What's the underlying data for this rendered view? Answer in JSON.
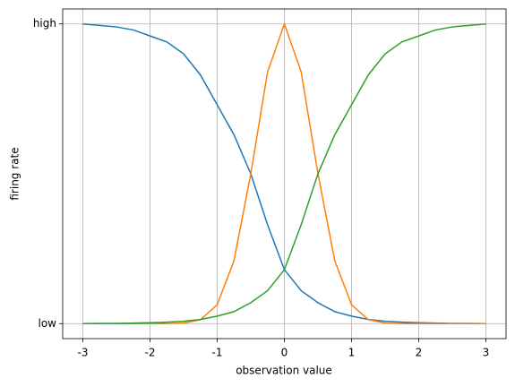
{
  "chart_data": {
    "type": "line",
    "xlabel": "observation value",
    "ylabel": "firing rate",
    "x": [
      -3,
      -2.75,
      -2.5,
      -2.25,
      -2,
      -1.75,
      -1.5,
      -1.25,
      -1,
      -0.75,
      -0.5,
      -0.25,
      0,
      0.25,
      0.5,
      0.75,
      1,
      1.25,
      1.5,
      1.75,
      2,
      2.25,
      2.5,
      2.75,
      3
    ],
    "series": [
      {
        "color": "#1f77b4",
        "values": [
          1.0,
          0.995,
          0.99,
          0.98,
          0.96,
          0.94,
          0.9,
          0.83,
          0.73,
          0.63,
          0.5,
          0.33,
          0.18,
          0.11,
          0.07,
          0.04,
          0.025,
          0.014,
          0.008,
          0.005,
          0.003,
          0.002,
          0.001,
          0.001,
          0.0
        ]
      },
      {
        "color": "#ff7f0e",
        "values": [
          0,
          0,
          0,
          0,
          0,
          0,
          0.002,
          0.013,
          0.063,
          0.21,
          0.5,
          0.84,
          1.0,
          0.84,
          0.5,
          0.21,
          0.063,
          0.013,
          0.002,
          0,
          0,
          0,
          0,
          0,
          0
        ]
      },
      {
        "color": "#2ca02c",
        "values": [
          0.0,
          0.001,
          0.001,
          0.002,
          0.003,
          0.005,
          0.008,
          0.014,
          0.025,
          0.04,
          0.07,
          0.11,
          0.18,
          0.33,
          0.5,
          0.63,
          0.73,
          0.83,
          0.9,
          0.94,
          0.96,
          0.98,
          0.99,
          0.995,
          1.0
        ]
      }
    ],
    "xlim": [
      -3.3,
      3.3
    ],
    "ylim": [
      -0.05,
      1.05
    ],
    "xticks": [
      -3,
      -2,
      -1,
      0,
      1,
      2,
      3
    ],
    "yticks": [
      {
        "value": 0,
        "label": "low"
      },
      {
        "value": 1,
        "label": "high"
      }
    ],
    "grid": true
  }
}
